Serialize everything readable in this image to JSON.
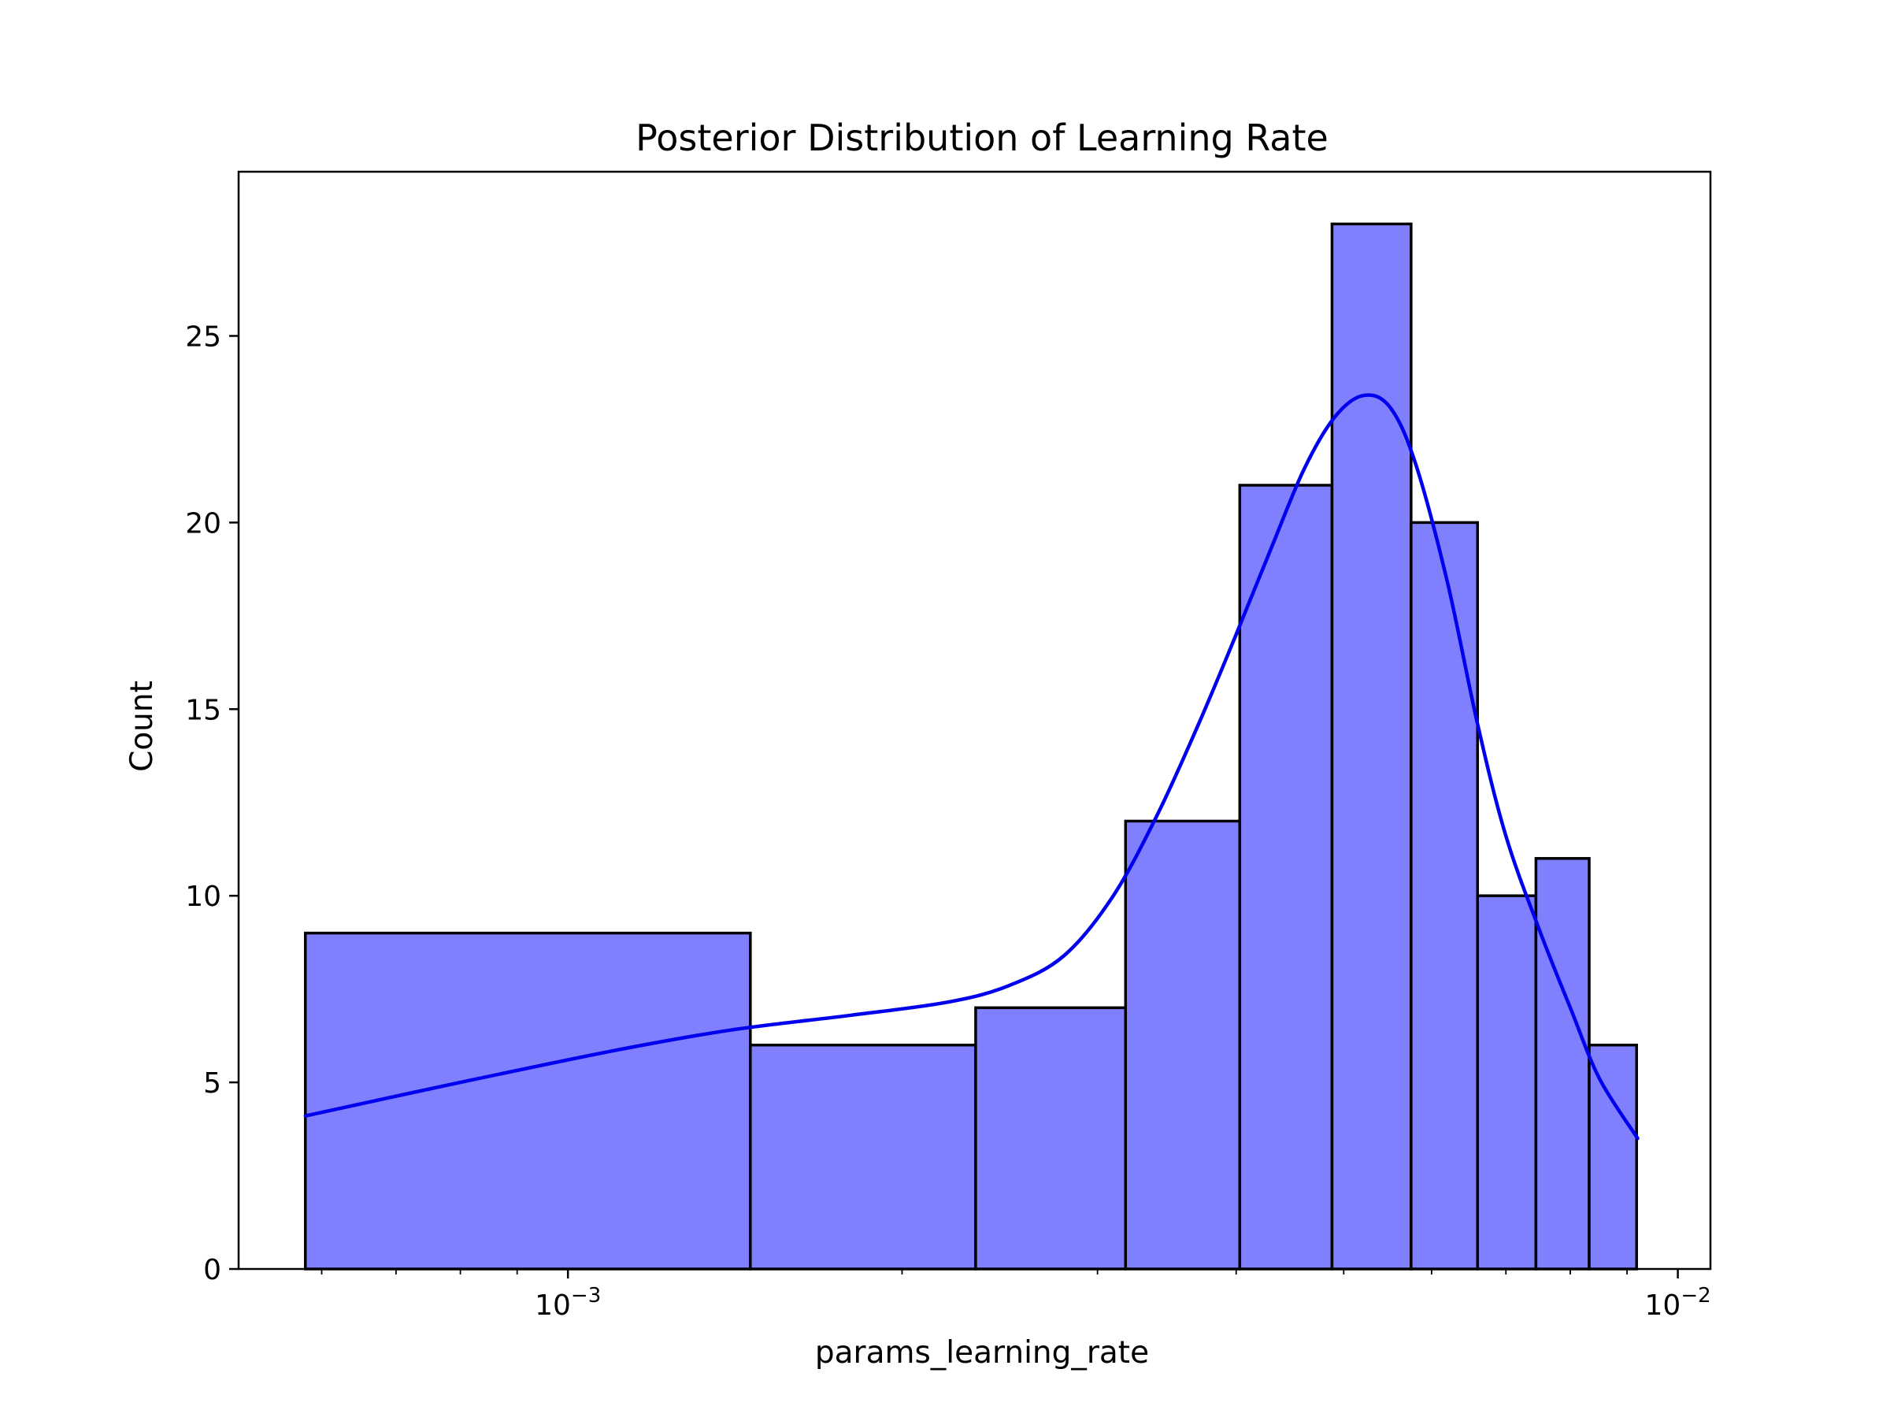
{
  "chart_data": {
    "type": "bar",
    "subtype": "histogram",
    "title": "Posterior Distribution of Learning Rate",
    "xlabel": "params_learning_rate",
    "ylabel": "Count",
    "xscale": "log",
    "xlim": [
      0.000505,
      0.0107
    ],
    "ylim": [
      0,
      29.4
    ],
    "grid": false,
    "legend": null,
    "bar_color": "#8080ff",
    "bar_edge_color": "#000000",
    "kde_color": "#0000ee",
    "y_ticks": [
      {
        "value": 0,
        "label": "0"
      },
      {
        "value": 5,
        "label": "5"
      },
      {
        "value": 10,
        "label": "10"
      },
      {
        "value": 15,
        "label": "15"
      },
      {
        "value": 20,
        "label": "20"
      },
      {
        "value": 25,
        "label": "25"
      }
    ],
    "x_major_ticks": [
      {
        "value": 0.001,
        "base": "10",
        "exponent": "−3"
      },
      {
        "value": 0.01,
        "base": "10",
        "exponent": "−2"
      }
    ],
    "x_minor_ticks": [
      0.0006,
      0.0007,
      0.0008,
      0.0009,
      0.002,
      0.003,
      0.004,
      0.005,
      0.006,
      0.007,
      0.008,
      0.009
    ],
    "bins": [
      {
        "x0": 0.00058,
        "x1": 0.00146,
        "count": 9
      },
      {
        "x0": 0.00146,
        "x1": 0.00233,
        "count": 6
      },
      {
        "x0": 0.00233,
        "x1": 0.00318,
        "count": 7
      },
      {
        "x0": 0.00318,
        "x1": 0.00403,
        "count": 12
      },
      {
        "x0": 0.00403,
        "x1": 0.00488,
        "count": 21
      },
      {
        "x0": 0.00488,
        "x1": 0.00575,
        "count": 28
      },
      {
        "x0": 0.00575,
        "x1": 0.0066,
        "count": 20
      },
      {
        "x0": 0.0066,
        "x1": 0.00745,
        "count": 10
      },
      {
        "x0": 0.00745,
        "x1": 0.00832,
        "count": 11
      },
      {
        "x0": 0.00832,
        "x1": 0.00918,
        "count": 6
      }
    ],
    "kde": [
      {
        "x": 0.00058,
        "y": 4.1
      },
      {
        "x": 0.0008,
        "y": 5.0
      },
      {
        "x": 0.0011,
        "y": 5.85
      },
      {
        "x": 0.0014,
        "y": 6.4
      },
      {
        "x": 0.0018,
        "y": 6.8
      },
      {
        "x": 0.0022,
        "y": 7.15
      },
      {
        "x": 0.0025,
        "y": 7.6
      },
      {
        "x": 0.0028,
        "y": 8.4
      },
      {
        "x": 0.0031,
        "y": 10.0
      },
      {
        "x": 0.0034,
        "y": 12.2
      },
      {
        "x": 0.0037,
        "y": 14.6
      },
      {
        "x": 0.004,
        "y": 17.0
      },
      {
        "x": 0.0043,
        "y": 19.3
      },
      {
        "x": 0.0046,
        "y": 21.4
      },
      {
        "x": 0.0049,
        "y": 22.8
      },
      {
        "x": 0.0052,
        "y": 23.4
      },
      {
        "x": 0.0055,
        "y": 23.1
      },
      {
        "x": 0.0058,
        "y": 21.6
      },
      {
        "x": 0.0062,
        "y": 18.4
      },
      {
        "x": 0.0066,
        "y": 14.6
      },
      {
        "x": 0.007,
        "y": 11.6
      },
      {
        "x": 0.0075,
        "y": 9.1
      },
      {
        "x": 0.008,
        "y": 7.0
      },
      {
        "x": 0.0085,
        "y": 5.1
      },
      {
        "x": 0.0092,
        "y": 3.5
      }
    ]
  }
}
